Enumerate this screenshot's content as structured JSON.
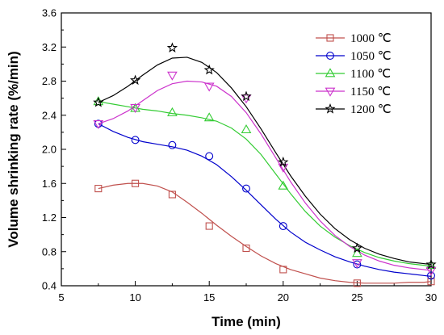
{
  "chart_data": {
    "type": "line",
    "title": "",
    "xlabel": "Time (min)",
    "ylabel": "Volume shrinking rate (%/min)",
    "xlim": [
      5,
      30
    ],
    "ylim": [
      0.4,
      3.6
    ],
    "xticks": [
      5,
      10,
      15,
      20,
      25,
      30
    ],
    "yticks": [
      0.4,
      0.8,
      1.2,
      1.6,
      2.0,
      2.4,
      2.8,
      3.2,
      3.6
    ],
    "xtick_labels": [
      "5",
      "10",
      "15",
      "20",
      "25",
      "30"
    ],
    "ytick_labels": [
      "0.4",
      "0.8",
      "1.2",
      "1.6",
      "2.0",
      "2.4",
      "2.8",
      "3.2",
      "3.6"
    ],
    "grid": false,
    "legend_position": "top-right",
    "x": [
      7.5,
      10,
      12.5,
      15,
      17.5,
      20,
      25,
      30
    ],
    "series": [
      {
        "name": "1000 ℃",
        "color": "#c0504d",
        "marker": "square",
        "values": [
          1.54,
          1.6,
          1.47,
          1.1,
          0.84,
          0.59,
          0.43,
          0.45
        ],
        "curve": [
          [
            7.5,
            1.54
          ],
          [
            8.5,
            1.58
          ],
          [
            9.5,
            1.6
          ],
          [
            10.5,
            1.6
          ],
          [
            11.5,
            1.57
          ],
          [
            12.5,
            1.5
          ],
          [
            13.5,
            1.38
          ],
          [
            14.5,
            1.25
          ],
          [
            15.5,
            1.11
          ],
          [
            16.5,
            0.98
          ],
          [
            17.5,
            0.86
          ],
          [
            18.5,
            0.75
          ],
          [
            19.5,
            0.66
          ],
          [
            20.5,
            0.59
          ],
          [
            21.5,
            0.54
          ],
          [
            22.5,
            0.49
          ],
          [
            23.5,
            0.46
          ],
          [
            24.5,
            0.44
          ],
          [
            25.5,
            0.43
          ],
          [
            26.5,
            0.43
          ],
          [
            27.5,
            0.43
          ],
          [
            28.5,
            0.44
          ],
          [
            29.5,
            0.44
          ],
          [
            30,
            0.45
          ]
        ]
      },
      {
        "name": "1050 ℃",
        "color": "#0000cc",
        "marker": "circle",
        "values": [
          2.3,
          2.11,
          2.05,
          1.92,
          1.54,
          1.1,
          0.65,
          0.52
        ],
        "curve": [
          [
            7.5,
            2.3
          ],
          [
            8.5,
            2.21
          ],
          [
            9.5,
            2.14
          ],
          [
            10.5,
            2.09
          ],
          [
            11.5,
            2.06
          ],
          [
            12.5,
            2.03
          ],
          [
            13.5,
            1.99
          ],
          [
            14.5,
            1.92
          ],
          [
            15.5,
            1.82
          ],
          [
            16.5,
            1.68
          ],
          [
            17.5,
            1.52
          ],
          [
            18.5,
            1.35
          ],
          [
            19.5,
            1.18
          ],
          [
            20.5,
            1.03
          ],
          [
            21.5,
            0.91
          ],
          [
            22.5,
            0.82
          ],
          [
            23.5,
            0.74
          ],
          [
            24.5,
            0.68
          ],
          [
            25.5,
            0.63
          ],
          [
            26.5,
            0.59
          ],
          [
            27.5,
            0.56
          ],
          [
            28.5,
            0.54
          ],
          [
            29.5,
            0.52
          ],
          [
            30,
            0.51
          ]
        ]
      },
      {
        "name": "1100 ℃",
        "color": "#33cc33",
        "marker": "triangle-up",
        "values": [
          2.56,
          2.48,
          2.43,
          2.37,
          2.23,
          1.57,
          0.78,
          0.64
        ],
        "curve": [
          [
            7.5,
            2.56
          ],
          [
            8.5,
            2.53
          ],
          [
            9.5,
            2.5
          ],
          [
            10.5,
            2.47
          ],
          [
            11.5,
            2.45
          ],
          [
            12.5,
            2.42
          ],
          [
            13.5,
            2.4
          ],
          [
            14.5,
            2.37
          ],
          [
            15.5,
            2.33
          ],
          [
            16.5,
            2.25
          ],
          [
            17.5,
            2.12
          ],
          [
            18.5,
            1.94
          ],
          [
            19.5,
            1.71
          ],
          [
            20.5,
            1.48
          ],
          [
            21.5,
            1.27
          ],
          [
            22.5,
            1.1
          ],
          [
            23.5,
            0.97
          ],
          [
            24.5,
            0.87
          ],
          [
            25.5,
            0.79
          ],
          [
            26.5,
            0.73
          ],
          [
            27.5,
            0.69
          ],
          [
            28.5,
            0.66
          ],
          [
            29.5,
            0.64
          ],
          [
            30,
            0.63
          ]
        ]
      },
      {
        "name": "1150 ℃",
        "color": "#cc33cc",
        "marker": "triangle-down",
        "values": [
          2.3,
          2.49,
          2.87,
          2.74,
          2.6,
          1.79,
          0.67,
          0.58
        ],
        "curve": [
          [
            7.5,
            2.3
          ],
          [
            8.5,
            2.36
          ],
          [
            9.5,
            2.45
          ],
          [
            10.5,
            2.57
          ],
          [
            11.5,
            2.69
          ],
          [
            12.5,
            2.77
          ],
          [
            13.5,
            2.8
          ],
          [
            14.5,
            2.79
          ],
          [
            15.5,
            2.74
          ],
          [
            16.5,
            2.62
          ],
          [
            17.5,
            2.43
          ],
          [
            18.5,
            2.18
          ],
          [
            19.5,
            1.9
          ],
          [
            20.5,
            1.62
          ],
          [
            21.5,
            1.37
          ],
          [
            22.5,
            1.16
          ],
          [
            23.5,
            0.99
          ],
          [
            24.5,
            0.86
          ],
          [
            25.5,
            0.76
          ],
          [
            26.5,
            0.69
          ],
          [
            27.5,
            0.64
          ],
          [
            28.5,
            0.61
          ],
          [
            29.5,
            0.59
          ],
          [
            30,
            0.58
          ]
        ]
      },
      {
        "name": "1200 ℃",
        "color": "#000000",
        "marker": "star",
        "values": [
          2.55,
          2.81,
          3.19,
          2.93,
          2.62,
          1.85,
          0.84,
          0.65
        ],
        "curve": [
          [
            7.5,
            2.55
          ],
          [
            8.5,
            2.63
          ],
          [
            9.5,
            2.74
          ],
          [
            10.5,
            2.87
          ],
          [
            11.5,
            2.99
          ],
          [
            12.5,
            3.07
          ],
          [
            13.5,
            3.08
          ],
          [
            14.5,
            3.02
          ],
          [
            15.5,
            2.9
          ],
          [
            16.5,
            2.72
          ],
          [
            17.5,
            2.5
          ],
          [
            18.5,
            2.24
          ],
          [
            19.5,
            1.96
          ],
          [
            20.5,
            1.69
          ],
          [
            21.5,
            1.45
          ],
          [
            22.5,
            1.24
          ],
          [
            23.5,
            1.07
          ],
          [
            24.5,
            0.94
          ],
          [
            25.5,
            0.84
          ],
          [
            26.5,
            0.77
          ],
          [
            27.5,
            0.72
          ],
          [
            28.5,
            0.68
          ],
          [
            29.5,
            0.66
          ],
          [
            30,
            0.65
          ]
        ]
      }
    ]
  }
}
